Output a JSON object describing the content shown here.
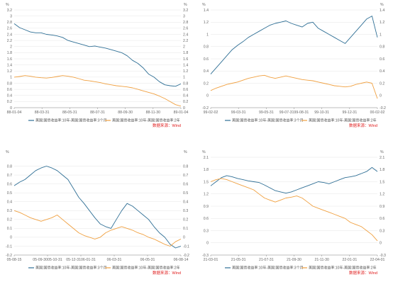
{
  "colors": {
    "series1": "#2f6f95",
    "series2": "#f0a040",
    "source": "#e02020"
  },
  "chart_data": [
    {
      "type": "line",
      "unit_left": "%",
      "unit_right": "%",
      "ylim": [
        0,
        3.2
      ],
      "yticks": [
        0,
        0.2,
        0.4,
        0.6,
        0.8,
        1.0,
        1.2,
        1.4,
        1.6,
        1.8,
        2.0,
        2.2,
        2.4,
        2.6,
        2.8,
        3.0,
        3.2
      ],
      "ytick_labels": [
        "0",
        "0.2",
        "0.4",
        "0.6",
        "0.8",
        "1",
        "1.2",
        "1.4",
        "1.6",
        "1.8",
        "2",
        "2.2",
        "2.4",
        "2.6",
        "2.8",
        "3",
        "3.2"
      ],
      "xtick_labels": [
        "88-01-04",
        "88-03-31",
        "88-05-31",
        "88-07-31",
        "88-09-30",
        "88-11-30",
        "89-01-04"
      ],
      "grid": true,
      "legend": "bottom",
      "series": [
        {
          "name": "美国:国债收益率:10年-美国:国债收益率:3个月",
          "values": [
            2.75,
            2.62,
            2.55,
            2.48,
            2.45,
            2.45,
            2.4,
            2.38,
            2.35,
            2.3,
            2.2,
            2.15,
            2.1,
            2.05,
            2.0,
            2.02,
            1.98,
            1.95,
            1.9,
            1.85,
            1.8,
            1.7,
            1.55,
            1.45,
            1.3,
            1.1,
            1.0,
            0.85,
            0.75,
            0.72,
            0.7,
            0.78
          ]
        },
        {
          "name": "美国:国债收益率:10年-美国:国债收益率:2年",
          "values": [
            1.0,
            1.02,
            1.05,
            1.03,
            1.0,
            0.98,
            0.97,
            0.99,
            1.02,
            1.05,
            1.03,
            1.0,
            0.95,
            0.9,
            0.88,
            0.85,
            0.82,
            0.78,
            0.75,
            0.72,
            0.7,
            0.68,
            0.65,
            0.6,
            0.55,
            0.5,
            0.45,
            0.38,
            0.3,
            0.2,
            0.1,
            0.05
          ]
        }
      ],
      "source": "数据来源：Wind"
    },
    {
      "type": "line",
      "unit_left": "%",
      "unit_right": "%",
      "ylim": [
        -0.2,
        1.4
      ],
      "yticks": [
        -0.2,
        0,
        0.2,
        0.4,
        0.6,
        0.8,
        1.0,
        1.2,
        1.4
      ],
      "ytick_labels": [
        "-0.2",
        "0",
        "0.2",
        "0.4",
        "0.6",
        "0.8",
        "1",
        "1.2",
        "1.4"
      ],
      "xtick_labels": [
        "99-02-02",
        "99-03-31",
        "99-05-31",
        "99-07-3199-08-31",
        "99-10-31",
        "99-12-31",
        "00-02-02"
      ],
      "grid": true,
      "legend": "bottom",
      "series": [
        {
          "name": "美国:国债收益率:10年-美国:国债收益率:3个月",
          "values": [
            0.35,
            0.45,
            0.55,
            0.65,
            0.75,
            0.82,
            0.88,
            0.95,
            1.0,
            1.05,
            1.1,
            1.15,
            1.18,
            1.2,
            1.22,
            1.18,
            1.15,
            1.12,
            1.18,
            1.2,
            1.1,
            1.05,
            1.0,
            0.95,
            0.9,
            0.85,
            0.95,
            1.05,
            1.15,
            1.25,
            1.3,
            0.95
          ]
        },
        {
          "name": "美国:国债收益率:10年-美国:国债收益率:2年",
          "values": [
            0.08,
            0.12,
            0.15,
            0.18,
            0.2,
            0.22,
            0.25,
            0.28,
            0.3,
            0.32,
            0.33,
            0.3,
            0.28,
            0.3,
            0.32,
            0.3,
            0.28,
            0.26,
            0.25,
            0.24,
            0.22,
            0.2,
            0.18,
            0.16,
            0.15,
            0.14,
            0.15,
            0.18,
            0.2,
            0.22,
            0.2,
            -0.05
          ]
        }
      ],
      "source": "数据来源：Wind"
    },
    {
      "type": "line",
      "unit_left": "%",
      "unit_right": "%",
      "ylim": [
        -0.2,
        0.9
      ],
      "yticks": [
        -0.2,
        -0.1,
        0,
        0.1,
        0.2,
        0.3,
        0.4,
        0.5,
        0.6,
        0.7,
        0.8
      ],
      "ytick_labels": [
        "-0.2",
        "-0.1",
        "0",
        "0.1",
        "0.2",
        "0.3",
        "0.4",
        "0.5",
        "0.6",
        "0.7",
        "0.8"
      ],
      "xtick_labels": [
        "05-08-15",
        "05-09-3005-10-31",
        "05-12-3106-01-31",
        "06-03-31",
        "06-05-31",
        "06-08-14"
      ],
      "grid": true,
      "legend": "bottom",
      "series": [
        {
          "name": "美国:国债收益率:10年-美国:国债收益率:3个月",
          "values": [
            0.58,
            0.62,
            0.65,
            0.7,
            0.75,
            0.78,
            0.8,
            0.78,
            0.75,
            0.7,
            0.65,
            0.55,
            0.45,
            0.38,
            0.3,
            0.22,
            0.15,
            0.12,
            0.1,
            0.2,
            0.3,
            0.38,
            0.35,
            0.3,
            0.25,
            0.2,
            0.12,
            0.05,
            0.0,
            -0.08,
            -0.12,
            -0.1
          ]
        },
        {
          "name": "美国:国债收益率:10年-美国:国债收益率:2年",
          "values": [
            0.3,
            0.28,
            0.25,
            0.22,
            0.2,
            0.18,
            0.2,
            0.22,
            0.25,
            0.2,
            0.15,
            0.1,
            0.05,
            0.02,
            0.0,
            -0.02,
            0.0,
            0.05,
            0.08,
            0.1,
            0.12,
            0.1,
            0.08,
            0.05,
            0.03,
            0.0,
            -0.02,
            -0.05,
            -0.08,
            -0.1,
            -0.05,
            -0.02
          ]
        }
      ],
      "source": "数据来源：Wind"
    },
    {
      "type": "line",
      "unit_left": "%",
      "unit_right": "%",
      "ylim": [
        -0.3,
        2.1
      ],
      "yticks": [
        -0.3,
        0,
        0.3,
        0.6,
        0.9,
        1.2,
        1.5,
        1.8,
        2.1
      ],
      "ytick_labels": [
        "-0.3",
        "0",
        "0.3",
        "0.6",
        "0.9",
        "1.2",
        "1.5",
        "1.8",
        "2.1"
      ],
      "xtick_labels": [
        "21-03-01",
        "21-05-31",
        "21-07-31",
        "21-09-30",
        "21-11-30",
        "22-01-31",
        "22-04-01"
      ],
      "grid": true,
      "legend": "bottom",
      "series": [
        {
          "name": "美国:国债收益率:10年-美国:国债收益率:3个月",
          "values": [
            1.4,
            1.5,
            1.6,
            1.65,
            1.62,
            1.58,
            1.55,
            1.52,
            1.5,
            1.48,
            1.42,
            1.35,
            1.28,
            1.25,
            1.22,
            1.25,
            1.3,
            1.35,
            1.4,
            1.45,
            1.5,
            1.48,
            1.45,
            1.5,
            1.55,
            1.6,
            1.62,
            1.65,
            1.7,
            1.75,
            1.85,
            1.75
          ]
        },
        {
          "name": "美国:国债收益率:10年-美国:国债收益率:2年",
          "values": [
            1.5,
            1.55,
            1.58,
            1.55,
            1.5,
            1.45,
            1.4,
            1.35,
            1.3,
            1.2,
            1.1,
            1.05,
            1.0,
            1.05,
            1.1,
            1.12,
            1.15,
            1.1,
            1.0,
            0.9,
            0.85,
            0.8,
            0.75,
            0.7,
            0.65,
            0.6,
            0.5,
            0.45,
            0.4,
            0.3,
            0.2,
            0.05
          ]
        }
      ],
      "source": "数据来源：Wind"
    }
  ]
}
